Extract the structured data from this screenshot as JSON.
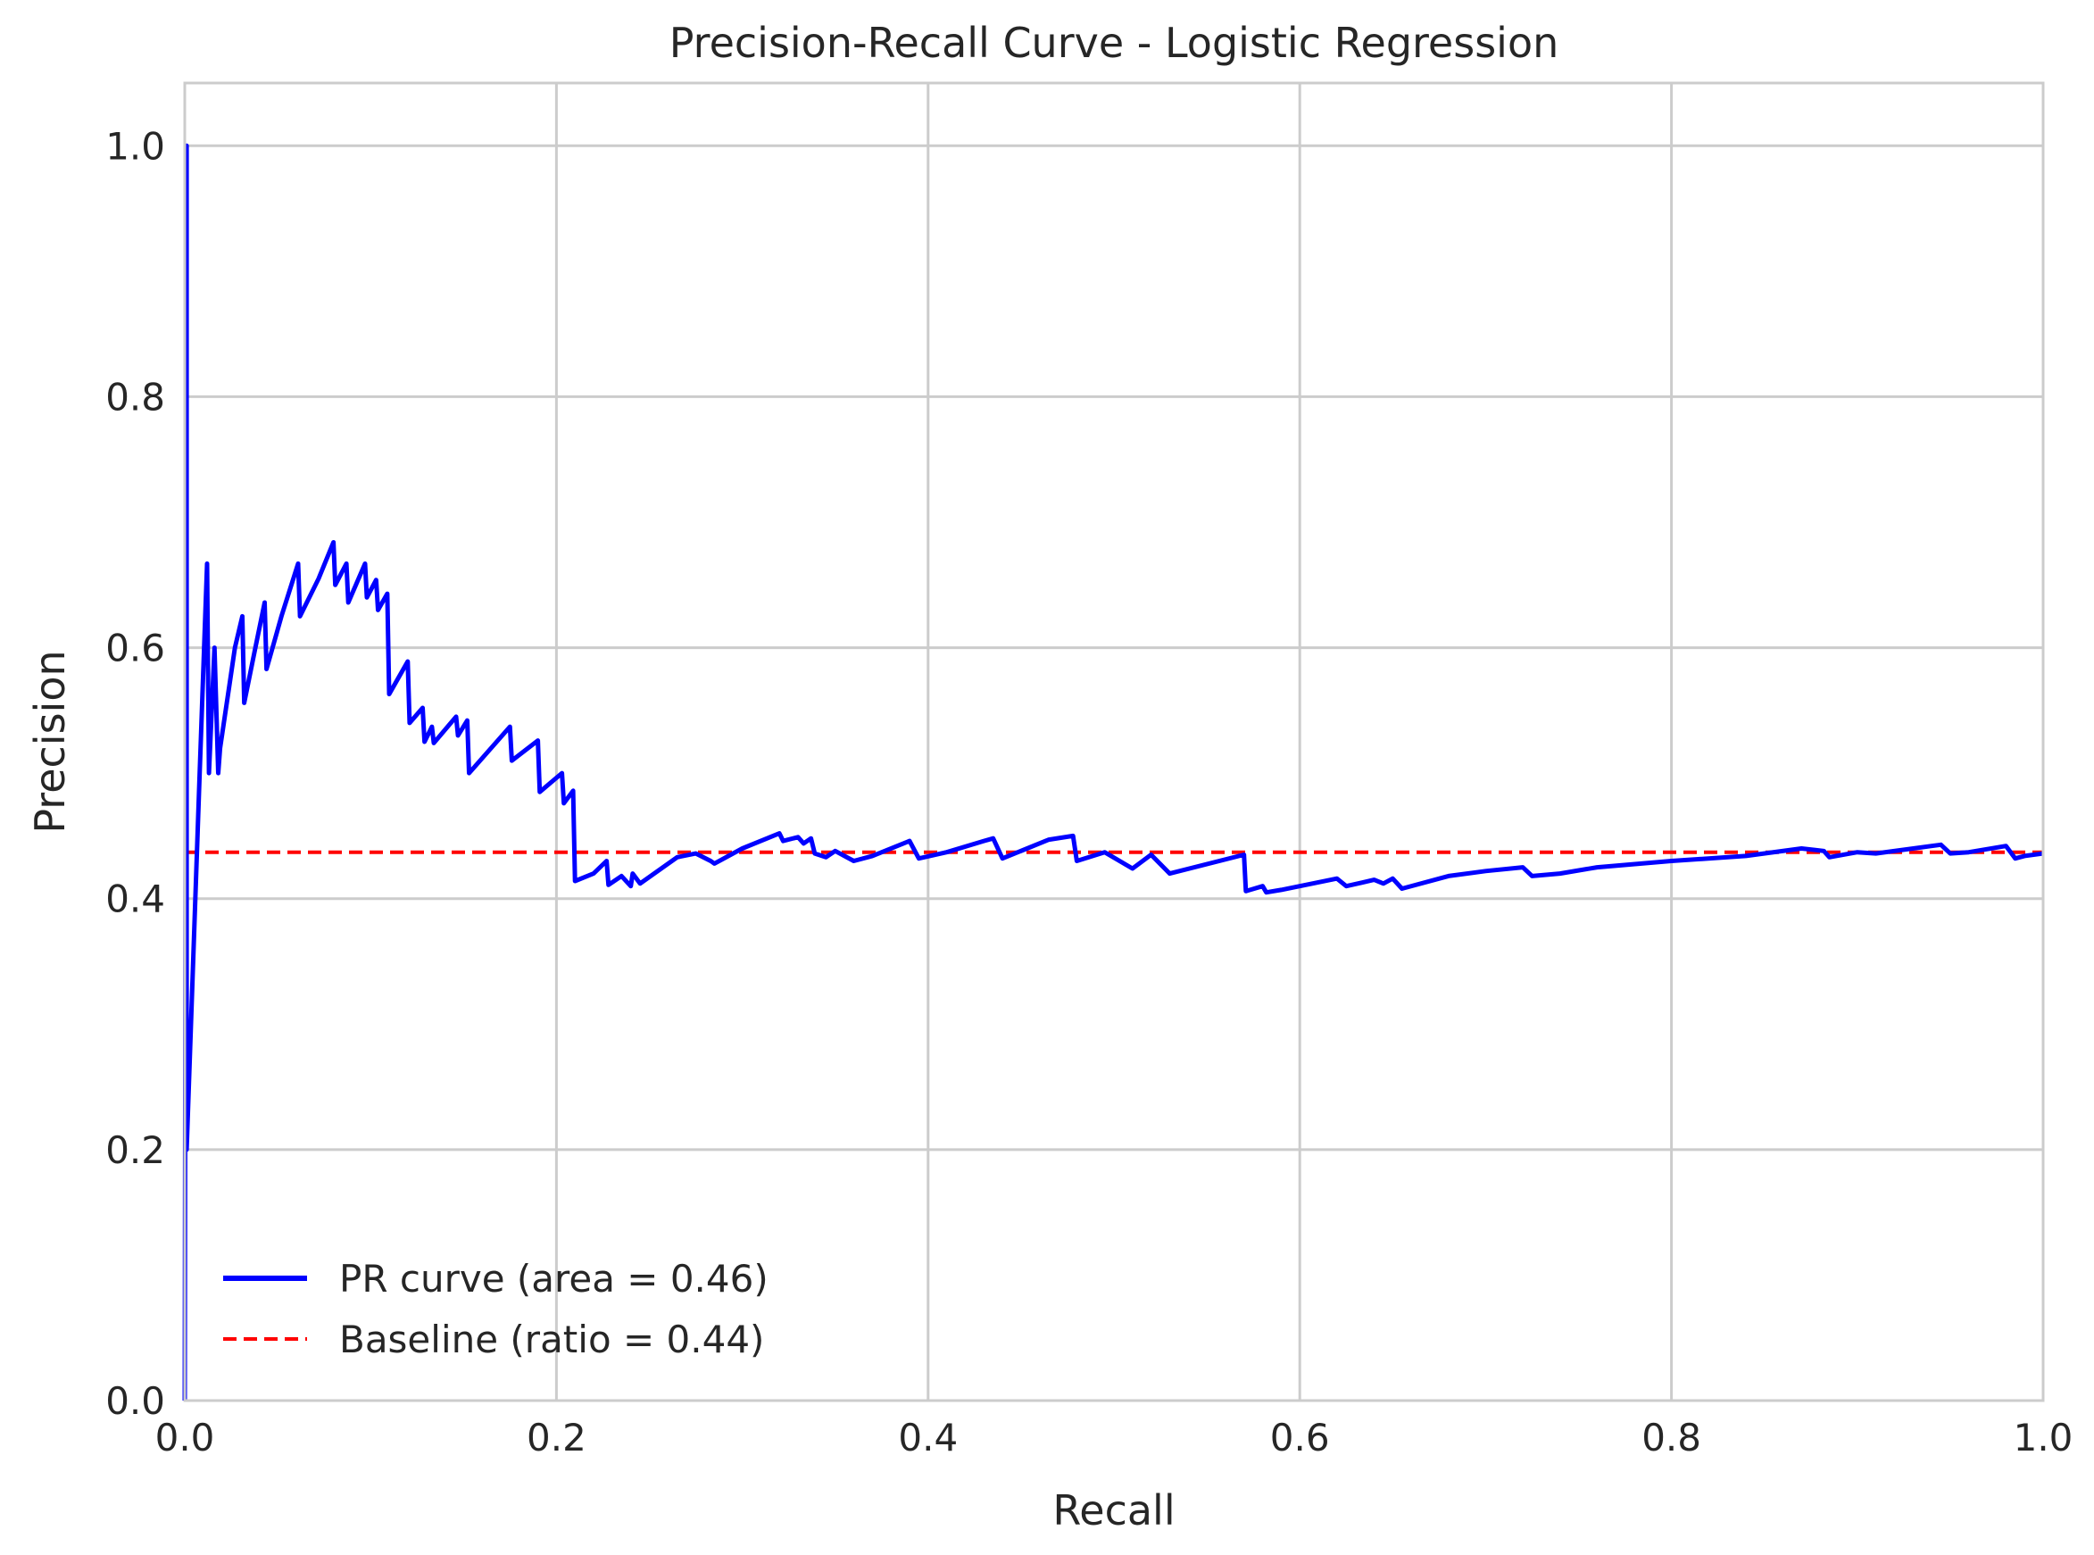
{
  "chart_data": {
    "type": "line",
    "title": "Precision-Recall Curve - Logistic Regression",
    "xlabel": "Recall",
    "ylabel": "Precision",
    "xlim": [
      0.0,
      1.0
    ],
    "ylim": [
      0.0,
      1.05
    ],
    "xticks": [
      "0.0",
      "0.2",
      "0.4",
      "0.6",
      "0.8",
      "1.0"
    ],
    "yticks": [
      "0.0",
      "0.2",
      "0.4",
      "0.6",
      "0.8",
      "1.0"
    ],
    "grid": true,
    "legend_position": "lower-left",
    "series": [
      {
        "name": "PR curve (area = 0.46)",
        "color": "#0000ff",
        "style": "solid",
        "x": [
          0.0,
          0.001,
          0.001,
          0.008,
          0.012,
          0.013,
          0.016,
          0.018,
          0.019,
          0.024,
          0.027,
          0.031,
          0.032,
          0.038,
          0.043,
          0.044,
          0.052,
          0.061,
          0.062,
          0.072,
          0.08,
          0.081,
          0.087,
          0.088,
          0.097,
          0.098,
          0.103,
          0.104,
          0.109,
          0.11,
          0.12,
          0.121,
          0.128,
          0.129,
          0.133,
          0.134,
          0.146,
          0.147,
          0.152,
          0.153,
          0.175,
          0.176,
          0.19,
          0.191,
          0.203,
          0.204,
          0.209,
          0.21,
          0.22,
          0.227,
          0.228,
          0.235,
          0.24,
          0.241,
          0.245,
          0.265,
          0.275,
          0.283,
          0.285,
          0.3,
          0.32,
          0.322,
          0.33,
          0.333,
          0.337,
          0.339,
          0.345,
          0.35,
          0.36,
          0.37,
          0.39,
          0.395,
          0.41,
          0.43,
          0.435,
          0.44,
          0.465,
          0.478,
          0.48,
          0.495,
          0.51,
          0.52,
          0.53,
          0.57,
          0.571,
          0.58,
          0.582,
          0.59,
          0.62,
          0.625,
          0.64,
          0.645,
          0.65,
          0.655,
          0.68,
          0.7,
          0.72,
          0.725,
          0.74,
          0.76,
          0.8,
          0.84,
          0.87,
          0.882,
          0.885,
          0.9,
          0.91,
          0.945,
          0.95,
          0.96,
          0.98,
          0.985,
          0.99,
          1.0
        ],
        "y": [
          0.0,
          1.0,
          0.2,
          0.5,
          0.667,
          0.5,
          0.6,
          0.5,
          0.52,
          0.57,
          0.6,
          0.625,
          0.556,
          0.6,
          0.636,
          0.583,
          0.625,
          0.667,
          0.625,
          0.655,
          0.684,
          0.65,
          0.667,
          0.636,
          0.667,
          0.64,
          0.654,
          0.63,
          0.643,
          0.563,
          0.589,
          0.54,
          0.552,
          0.525,
          0.537,
          0.524,
          0.545,
          0.53,
          0.542,
          0.5,
          0.537,
          0.51,
          0.526,
          0.485,
          0.5,
          0.476,
          0.486,
          0.414,
          0.42,
          0.43,
          0.411,
          0.418,
          0.41,
          0.42,
          0.412,
          0.433,
          0.436,
          0.43,
          0.428,
          0.44,
          0.452,
          0.446,
          0.449,
          0.444,
          0.448,
          0.436,
          0.433,
          0.438,
          0.43,
          0.434,
          0.446,
          0.432,
          0.437,
          0.446,
          0.448,
          0.432,
          0.447,
          0.45,
          0.43,
          0.437,
          0.424,
          0.435,
          0.42,
          0.435,
          0.406,
          0.41,
          0.405,
          0.407,
          0.416,
          0.41,
          0.415,
          0.412,
          0.416,
          0.408,
          0.418,
          0.422,
          0.425,
          0.418,
          0.42,
          0.425,
          0.43,
          0.434,
          0.44,
          0.438,
          0.433,
          0.437,
          0.436,
          0.443,
          0.436,
          0.437,
          0.442,
          0.432,
          0.434,
          0.436
        ]
      },
      {
        "name": "Baseline (ratio = 0.44)",
        "color": "#ff0000",
        "style": "dashed",
        "x": [
          0.0,
          1.0
        ],
        "y": [
          0.437,
          0.437
        ]
      }
    ]
  }
}
